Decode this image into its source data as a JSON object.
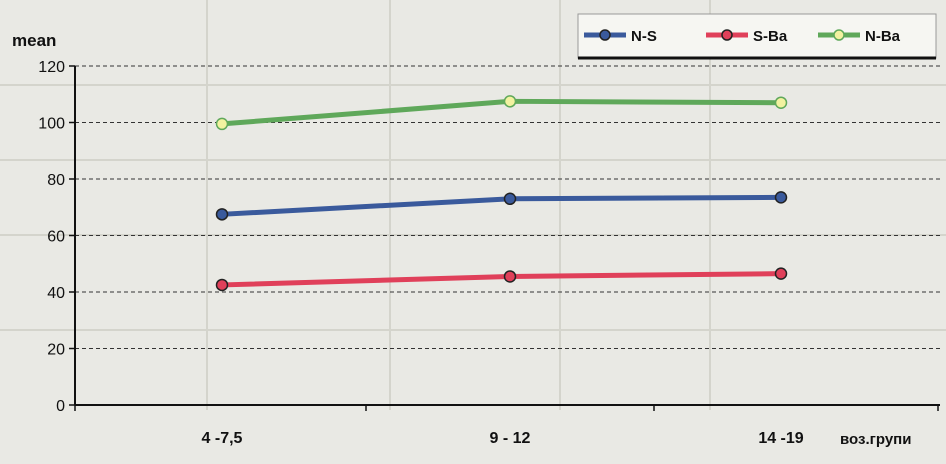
{
  "chart_data": {
    "type": "line",
    "title": "",
    "ylabel": "mean",
    "xlabel": "воз.групи",
    "categories": [
      "4 -7,5",
      "9 - 12",
      "14 -19"
    ],
    "ylim": [
      0,
      120
    ],
    "yticks": [
      0,
      20,
      40,
      60,
      80,
      100,
      120
    ],
    "grid": "horizontal-dashed",
    "legend_position": "top-right",
    "series": [
      {
        "name": "N-S",
        "values": [
          67.5,
          73,
          73.5
        ],
        "color": "#3a5a9c",
        "marker_fill": "#3a5a9c"
      },
      {
        "name": "S-Ba",
        "values": [
          42.5,
          45.5,
          46.5
        ],
        "color": "#e0405a",
        "marker_fill": "#e0405a"
      },
      {
        "name": "N-Ba",
        "values": [
          99.5,
          107.5,
          107
        ],
        "color": "#5fa85a",
        "marker_fill": "#f2f2a0"
      }
    ]
  }
}
